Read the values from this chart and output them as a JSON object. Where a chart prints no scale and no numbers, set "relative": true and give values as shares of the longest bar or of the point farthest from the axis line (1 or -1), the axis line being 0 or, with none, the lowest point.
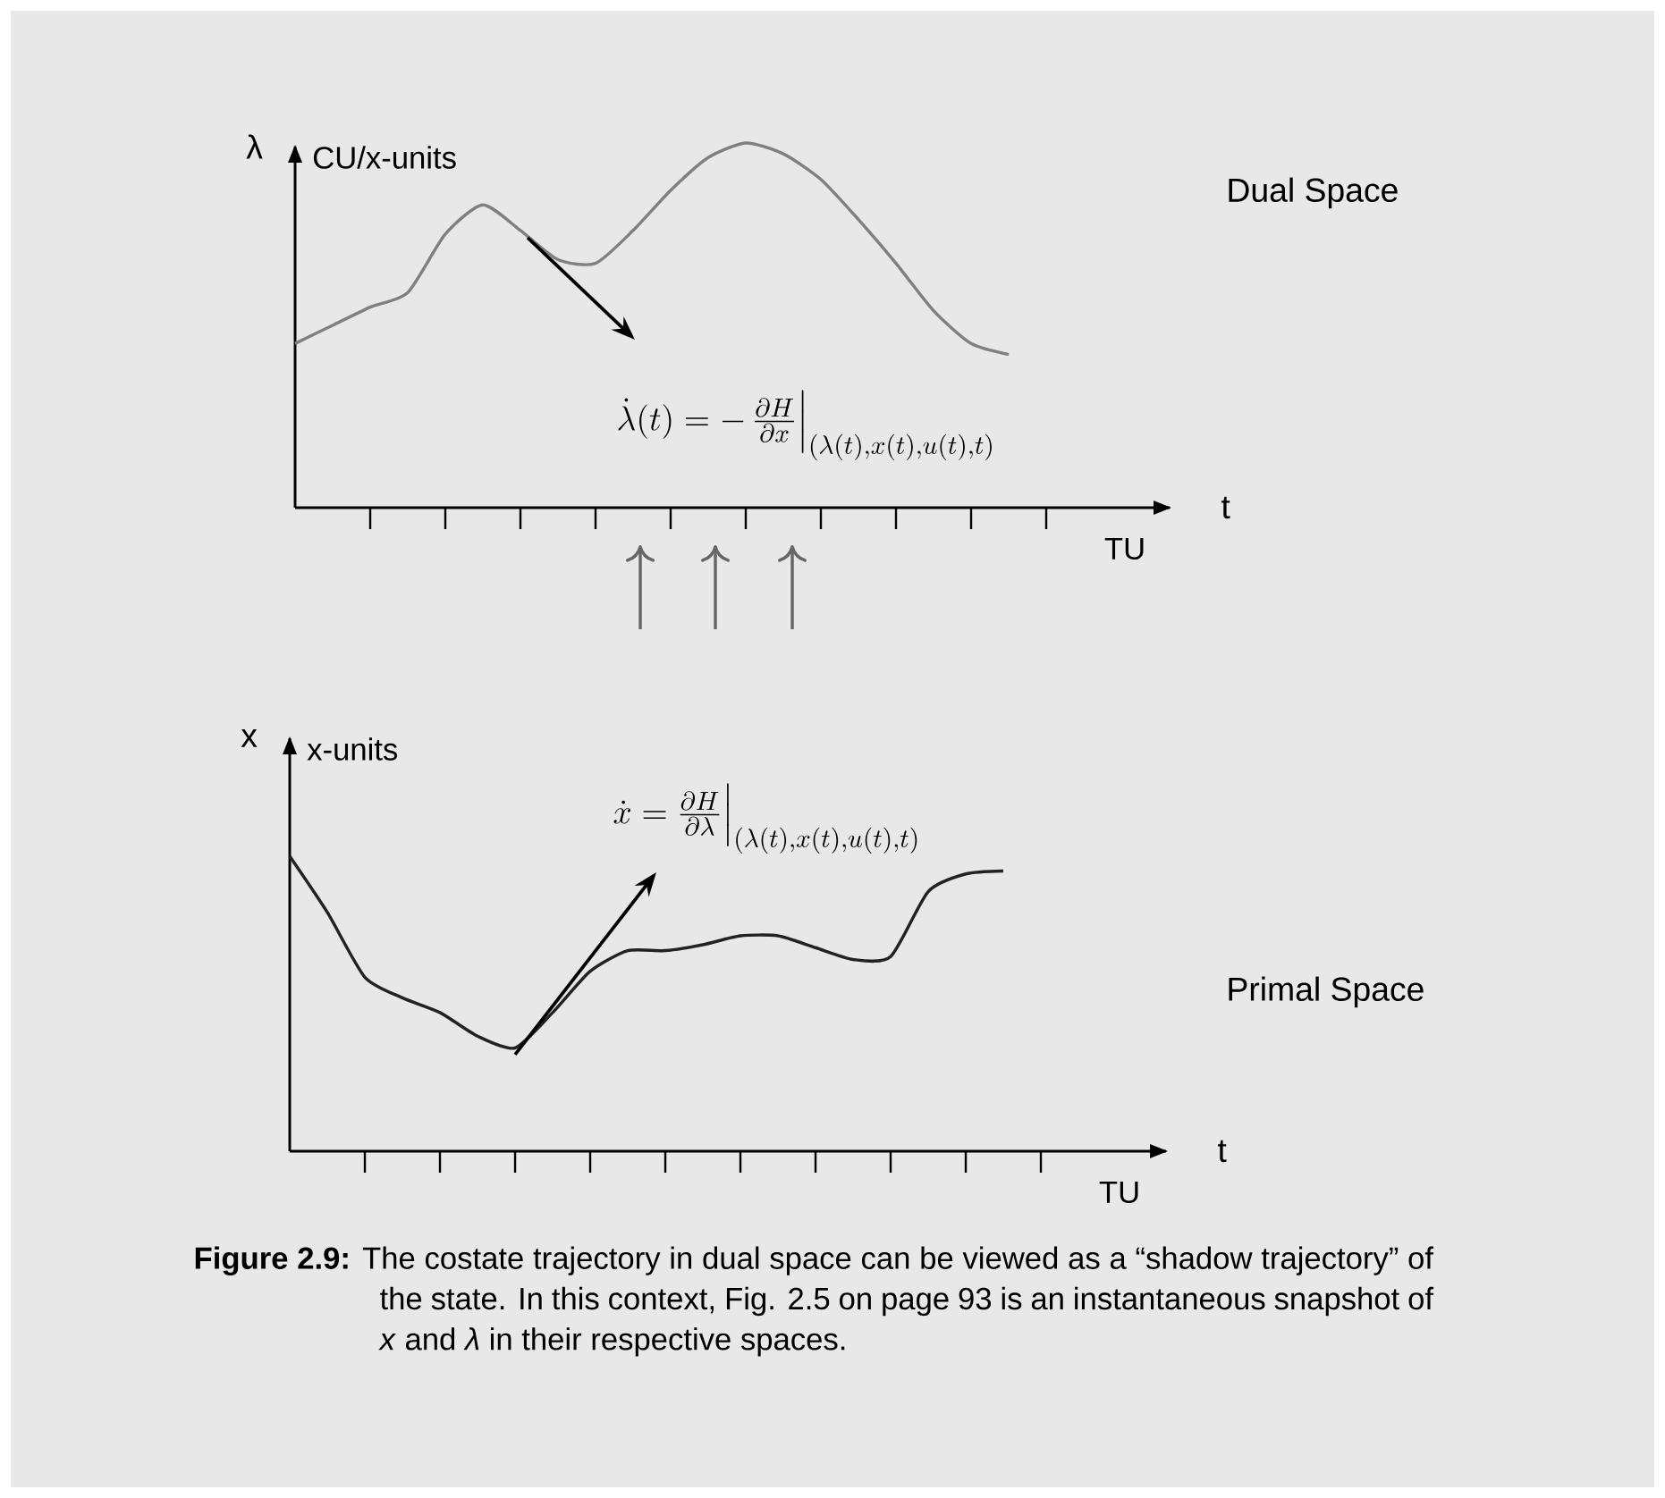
{
  "chart_data": [
    {
      "type": "line",
      "relative": true,
      "xlabel": "t",
      "ylabel": "λ",
      "categories": [
        null,
        null,
        null,
        null,
        null,
        null,
        null,
        null,
        null,
        null,
        null,
        null,
        null,
        null,
        null,
        null,
        null,
        null,
        null,
        null
      ],
      "series": [
        {
          "color": "#808080",
          "values": [
            0.45,
            0.5,
            0.55,
            0.59,
            0.75,
            0.83,
            0.76,
            0.68,
            0.67,
            0.76,
            0.87,
            0.96,
            1,
            0.97,
            0.9,
            0.79,
            0.67,
            0.54,
            0.45,
            0.42
          ]
        }
      ],
      "annotations": [
        "CU/x-units",
        "TU",
        "Dual Space",
        "\\dot{\\lambda}(t) = -\\,\\frac{\\partial H}{\\partial x}\\Big|_{(\\lambda(t),x(t),u(t),t)}"
      ]
    },
    {
      "type": "line",
      "relative": true,
      "xlabel": "t",
      "ylabel": "x",
      "categories": [
        null,
        null,
        null,
        null,
        null,
        null,
        null,
        null,
        null,
        null,
        null,
        null,
        null,
        null,
        null,
        null,
        null,
        null,
        null,
        null
      ],
      "series": [
        {
          "color": "#222222",
          "values": [
            1,
            0.81,
            0.59,
            0.52,
            0.47,
            0.39,
            0.35,
            0.47,
            0.61,
            0.68,
            0.68,
            0.7,
            0.73,
            0.73,
            0.69,
            0.65,
            0.66,
            0.88,
            0.94,
            0.95
          ]
        }
      ],
      "annotations": [
        "x-units",
        "TU",
        "Primal Space",
        "\\dot{x} = \\frac{\\partial H}{\\partial \\lambda}\\Big|_{(\\lambda(t),x(t),u(t),t)}",
        "**Figure 2.9:** The costate trajectory in dual space can be viewed as a “shadow trajectory” of the state. In this context, Fig. 2.5 on page 93 is an instantaneous snapshot of *x* and *λ* in their respective spaces."
      ]
    }
  ]
}
